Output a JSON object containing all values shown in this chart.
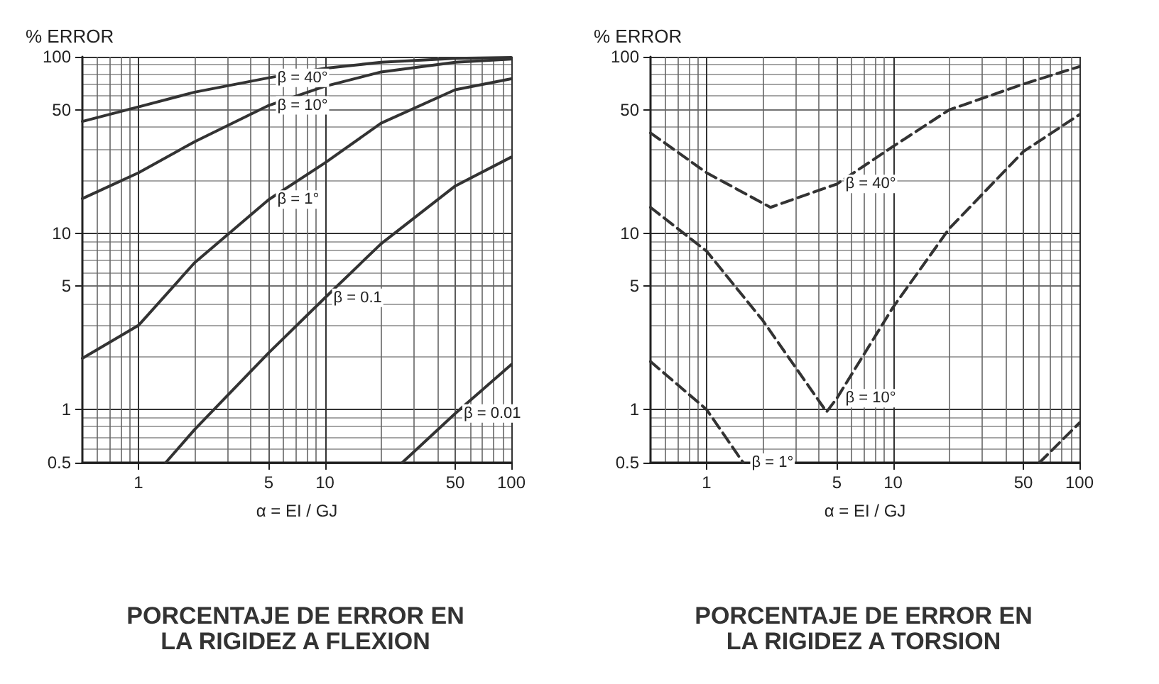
{
  "chart_data": [
    {
      "type": "line",
      "title": "PORCENTAJE DE ERROR EN\nLA RIGIDEZ A FLEXION",
      "ylabel": "% ERROR",
      "xlabel": "α = EI / GJ",
      "log": "xy",
      "grid": true,
      "legend": false,
      "line_style": "solid",
      "marker": "none",
      "xlim": [
        0.5,
        100
      ],
      "ylim": [
        0.5,
        100
      ],
      "xticks": [
        1,
        5,
        10,
        50,
        100
      ],
      "yticks": [
        0.5,
        1,
        5,
        10,
        50,
        100
      ],
      "series": [
        {
          "name": "β = 40°",
          "color": "#333333",
          "x": [
            0.5,
            1,
            2,
            5,
            10,
            20,
            50,
            100
          ],
          "values": [
            43,
            52,
            63,
            76,
            86,
            93,
            98,
            99
          ]
        },
        {
          "name": "β = 10°",
          "color": "#333333",
          "x": [
            0.5,
            1,
            2,
            5,
            10,
            20,
            50,
            100
          ],
          "values": [
            15.7,
            22,
            33,
            53,
            68,
            82,
            93,
            97
          ]
        },
        {
          "name": "β = 1°",
          "color": "#333333",
          "x": [
            0.5,
            1,
            2,
            5,
            10,
            20,
            50,
            100
          ],
          "values": [
            1.95,
            3.0,
            6.8,
            15.5,
            25,
            42,
            65,
            75
          ]
        },
        {
          "name": "β = 0.1",
          "color": "#333333",
          "x": [
            1.4,
            2,
            5,
            10,
            20,
            50,
            100
          ],
          "values": [
            0.5,
            0.77,
            2.1,
            4.3,
            8.7,
            18.5,
            27
          ]
        },
        {
          "name": "β = 0.01",
          "color": "#333333",
          "x": [
            26,
            50,
            100
          ],
          "values": [
            0.5,
            0.95,
            1.8
          ]
        }
      ]
    },
    {
      "type": "line",
      "title": "PORCENTAJE DE ERROR EN\nLA RIGIDEZ A TORSION",
      "ylabel": "% ERROR",
      "xlabel": "α = EI / GJ",
      "log": "xy",
      "grid": true,
      "legend": false,
      "line_style": "dashed",
      "marker": "none",
      "xlim": [
        0.5,
        100
      ],
      "ylim": [
        0.5,
        100
      ],
      "xticks": [
        1,
        5,
        10,
        50,
        100
      ],
      "yticks": [
        0.5,
        1,
        5,
        10,
        50,
        100
      ],
      "series": [
        {
          "name": "β = 40°",
          "color": "#333333",
          "x": [
            0.5,
            1,
            2.2,
            5,
            10,
            20,
            50,
            100
          ],
          "values": [
            37,
            22,
            14,
            19,
            31,
            50,
            70,
            88
          ]
        },
        {
          "name": "β = 10°",
          "color": "#333333",
          "x": [
            0.5,
            1,
            2,
            4.4,
            5,
            10,
            20,
            50,
            100
          ],
          "values": [
            14,
            7.9,
            3.2,
            0.97,
            1.16,
            3.8,
            10.6,
            29,
            47
          ]
        },
        {
          "name": "β = 1°",
          "color": "#333333",
          "x": [
            0.5,
            1,
            1.57,
            10,
            61,
            100
          ],
          "values": [
            1.87,
            1.0,
            0.5,
            null,
            0.5,
            0.84
          ]
        }
      ]
    }
  ]
}
